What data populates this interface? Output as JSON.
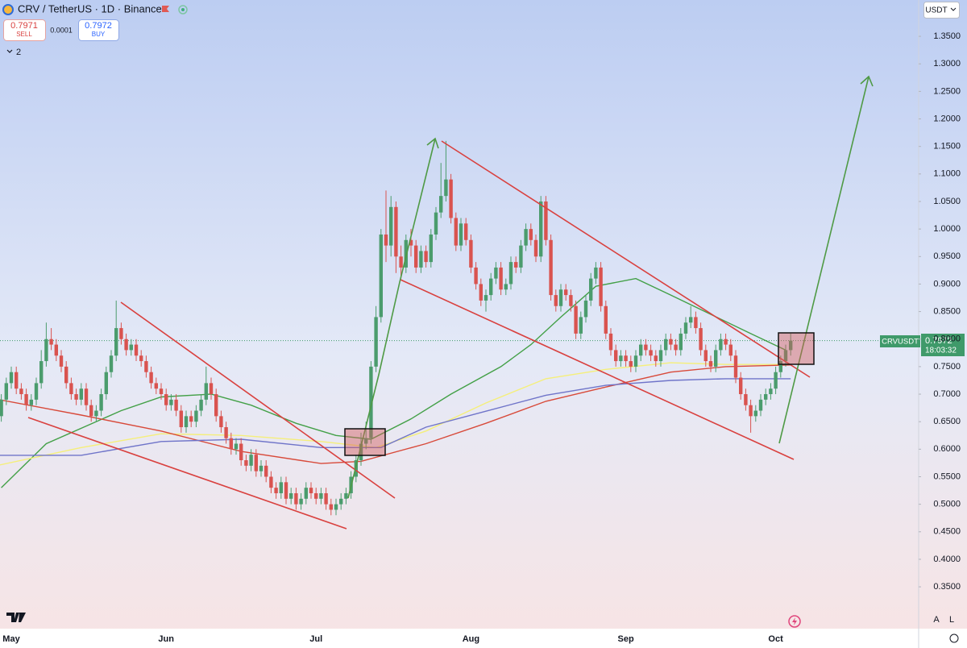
{
  "chart_data": {
    "type": "candlestick",
    "title": "CRV / TetherUS · 1D · Binance",
    "sell_price": 0.7971,
    "sell_label": "SELL",
    "spread": 0.0001,
    "buy_price": 0.7972,
    "buy_label": "BUY",
    "indicator_count": 2,
    "currency": "USDT",
    "symbol": "CRVUSDT",
    "last_price": 0.7972,
    "countdown": "18:03:32",
    "scale_buttons": [
      "A",
      "L"
    ],
    "up_color": "#4b9c6d",
    "down_color": "#d9534f",
    "grid": false,
    "ylim": [
      0.274,
      1.416
    ],
    "yticks": [
      {
        "value": 0.35,
        "label": "0.3500"
      },
      {
        "value": 0.4,
        "label": "0.4000"
      },
      {
        "value": 0.45,
        "label": "0.4500"
      },
      {
        "value": 0.5,
        "label": "0.5000"
      },
      {
        "value": 0.55,
        "label": "0.5500"
      },
      {
        "value": 0.6,
        "label": "0.6000"
      },
      {
        "value": 0.65,
        "label": "0.6500"
      },
      {
        "value": 0.7,
        "label": "0.7000"
      },
      {
        "value": 0.75,
        "label": "0.7500"
      },
      {
        "value": 0.8,
        "label": "0.8000"
      },
      {
        "value": 0.85,
        "label": "0.8500"
      },
      {
        "value": 0.9,
        "label": "0.9000"
      },
      {
        "value": 0.95,
        "label": "0.9500"
      },
      {
        "value": 1.0,
        "label": "1.0000"
      },
      {
        "value": 1.05,
        "label": "1.0500"
      },
      {
        "value": 1.1,
        "label": "1.1000"
      },
      {
        "value": 1.15,
        "label": "1.1500"
      },
      {
        "value": 1.2,
        "label": "1.2000"
      },
      {
        "value": 1.25,
        "label": "1.2500"
      },
      {
        "value": 1.3,
        "label": "1.3000"
      },
      {
        "value": 1.35,
        "label": "1.3500"
      }
    ],
    "categories": [
      null,
      null,
      null,
      "May",
      null,
      null,
      null,
      null,
      null,
      null,
      null,
      null,
      null,
      null,
      null,
      null,
      null,
      null,
      null,
      null,
      null,
      null,
      null,
      null,
      null,
      null,
      null,
      null,
      null,
      null,
      null,
      null,
      null,
      null,
      "Jun",
      null,
      null,
      null,
      null,
      null,
      null,
      null,
      null,
      null,
      null,
      null,
      null,
      null,
      null,
      null,
      null,
      null,
      null,
      null,
      null,
      null,
      null,
      null,
      null,
      null,
      null,
      null,
      null,
      null,
      "Jul",
      null,
      null,
      null,
      null,
      null,
      null,
      null,
      null,
      null,
      null,
      null,
      null,
      null,
      null,
      null,
      null,
      null,
      null,
      null,
      null,
      null,
      null,
      null,
      null,
      null,
      null,
      null,
      null,
      null,
      null,
      "Aug",
      null,
      null,
      null,
      null,
      null,
      null,
      null,
      null,
      null,
      null,
      null,
      null,
      null,
      null,
      null,
      null,
      null,
      null,
      null,
      null,
      null,
      null,
      null,
      null,
      null,
      null,
      null,
      null,
      null,
      null,
      "Sep",
      null,
      null,
      null,
      null,
      null,
      null,
      null,
      null,
      null,
      null,
      null,
      null,
      null,
      null,
      null,
      null,
      null,
      null,
      null,
      null,
      null,
      null,
      null,
      null,
      null,
      null,
      null,
      null,
      null,
      "Oct",
      null,
      null,
      null
    ],
    "open": [
      0.64,
      0.66,
      0.69,
      0.72,
      0.74,
      0.71,
      0.7,
      0.68,
      0.69,
      0.72,
      0.76,
      0.8,
      0.79,
      0.77,
      0.75,
      0.72,
      0.7,
      0.69,
      0.71,
      0.68,
      0.66,
      0.67,
      0.7,
      0.74,
      0.77,
      0.82,
      0.8,
      0.78,
      0.79,
      0.77,
      0.76,
      0.74,
      0.72,
      0.71,
      0.7,
      0.68,
      0.69,
      0.67,
      0.64,
      0.66,
      0.65,
      0.67,
      0.69,
      0.72,
      0.7,
      0.66,
      0.64,
      0.62,
      0.6,
      0.61,
      0.58,
      0.57,
      0.59,
      0.56,
      0.57,
      0.55,
      0.53,
      0.52,
      0.54,
      0.51,
      0.52,
      0.5,
      0.51,
      0.53,
      0.52,
      0.51,
      0.52,
      0.5,
      0.49,
      0.5,
      0.51,
      0.52,
      0.55,
      0.58,
      0.61,
      0.62,
      0.75,
      0.84,
      0.99,
      0.97,
      1.04,
      0.95,
      0.93,
      0.98,
      0.97,
      0.93,
      0.96,
      0.94,
      0.99,
      1.03,
      1.06,
      1.09,
      1.02,
      0.97,
      1.01,
      0.98,
      0.93,
      0.9,
      0.87,
      0.88,
      0.91,
      0.93,
      0.89,
      0.9,
      0.94,
      0.93,
      0.97,
      1.0,
      0.98,
      0.95,
      1.05,
      0.98,
      0.88,
      0.86,
      0.89,
      0.88,
      0.86,
      0.81,
      0.84,
      0.87,
      0.91,
      0.93,
      0.86,
      0.81,
      0.78,
      0.76,
      0.77,
      0.76,
      0.75,
      0.77,
      0.79,
      0.78,
      0.77,
      0.76,
      0.78,
      0.8,
      0.79,
      0.78,
      0.81,
      0.83,
      0.84,
      0.82,
      0.78,
      0.76,
      0.75,
      0.78,
      0.8,
      0.79,
      0.77,
      0.73,
      0.7,
      0.68,
      0.66,
      0.67,
      0.69,
      0.7,
      0.71,
      0.74,
      0.76,
      0.78
    ],
    "high": [
      0.67,
      0.7,
      0.73,
      0.75,
      0.75,
      0.72,
      0.71,
      0.7,
      0.73,
      0.78,
      0.83,
      0.82,
      0.8,
      0.78,
      0.76,
      0.73,
      0.71,
      0.72,
      0.72,
      0.69,
      0.68,
      0.71,
      0.75,
      0.78,
      0.87,
      0.83,
      0.81,
      0.8,
      0.8,
      0.78,
      0.77,
      0.75,
      0.73,
      0.72,
      0.71,
      0.7,
      0.7,
      0.68,
      0.67,
      0.67,
      0.68,
      0.7,
      0.75,
      0.73,
      0.71,
      0.67,
      0.65,
      0.63,
      0.62,
      0.62,
      0.59,
      0.6,
      0.6,
      0.58,
      0.58,
      0.56,
      0.54,
      0.55,
      0.55,
      0.53,
      0.53,
      0.52,
      0.54,
      0.54,
      0.53,
      0.53,
      0.53,
      0.51,
      0.51,
      0.52,
      0.53,
      0.56,
      0.59,
      0.63,
      0.65,
      0.76,
      0.86,
      1.0,
      1.07,
      1.06,
      1.05,
      0.97,
      0.99,
      1.0,
      0.98,
      0.97,
      0.97,
      1.0,
      1.04,
      1.12,
      1.16,
      1.1,
      1.03,
      1.02,
      1.02,
      0.99,
      0.94,
      0.91,
      0.89,
      0.92,
      0.94,
      0.94,
      0.91,
      0.95,
      0.95,
      0.98,
      1.01,
      1.01,
      0.99,
      1.06,
      1.06,
      0.99,
      0.89,
      0.9,
      0.9,
      0.89,
      0.87,
      0.85,
      0.88,
      0.92,
      0.94,
      0.94,
      0.87,
      0.82,
      0.79,
      0.78,
      0.78,
      0.77,
      0.78,
      0.8,
      0.8,
      0.79,
      0.78,
      0.79,
      0.81,
      0.81,
      0.8,
      0.82,
      0.84,
      0.86,
      0.85,
      0.83,
      0.79,
      0.77,
      0.79,
      0.81,
      0.81,
      0.8,
      0.78,
      0.74,
      0.71,
      0.69,
      0.68,
      0.7,
      0.71,
      0.72,
      0.75,
      0.77,
      0.79,
      0.81
    ],
    "low": [
      0.63,
      0.65,
      0.68,
      0.71,
      0.7,
      0.69,
      0.67,
      0.67,
      0.68,
      0.71,
      0.75,
      0.78,
      0.76,
      0.74,
      0.71,
      0.69,
      0.68,
      0.68,
      0.67,
      0.65,
      0.65,
      0.66,
      0.69,
      0.73,
      0.76,
      0.79,
      0.77,
      0.77,
      0.76,
      0.75,
      0.73,
      0.71,
      0.7,
      0.69,
      0.67,
      0.67,
      0.66,
      0.63,
      0.63,
      0.64,
      0.64,
      0.66,
      0.68,
      0.69,
      0.65,
      0.63,
      0.61,
      0.59,
      0.59,
      0.57,
      0.56,
      0.56,
      0.55,
      0.55,
      0.54,
      0.52,
      0.51,
      0.51,
      0.5,
      0.5,
      0.49,
      0.49,
      0.5,
      0.51,
      0.5,
      0.5,
      0.49,
      0.48,
      0.48,
      0.49,
      0.5,
      0.51,
      0.54,
      0.57,
      0.6,
      0.61,
      0.74,
      0.83,
      0.94,
      0.95,
      0.92,
      0.91,
      0.92,
      0.95,
      0.92,
      0.92,
      0.93,
      0.93,
      0.98,
      1.02,
      1.05,
      1.01,
      0.96,
      0.96,
      0.97,
      0.92,
      0.89,
      0.86,
      0.85,
      0.87,
      0.9,
      0.88,
      0.88,
      0.89,
      0.92,
      0.92,
      0.96,
      0.97,
      0.94,
      0.94,
      0.97,
      0.87,
      0.85,
      0.85,
      0.87,
      0.85,
      0.8,
      0.8,
      0.83,
      0.86,
      0.9,
      0.85,
      0.8,
      0.77,
      0.75,
      0.75,
      0.75,
      0.74,
      0.74,
      0.76,
      0.77,
      0.76,
      0.75,
      0.75,
      0.77,
      0.78,
      0.77,
      0.77,
      0.8,
      0.82,
      0.81,
      0.77,
      0.75,
      0.74,
      0.74,
      0.77,
      0.78,
      0.76,
      0.72,
      0.69,
      0.67,
      0.63,
      0.65,
      0.66,
      0.68,
      0.69,
      0.7,
      0.73,
      0.75,
      0.77
    ],
    "close": [
      0.66,
      0.69,
      0.72,
      0.74,
      0.71,
      0.7,
      0.68,
      0.69,
      0.72,
      0.76,
      0.8,
      0.79,
      0.77,
      0.75,
      0.72,
      0.7,
      0.69,
      0.71,
      0.68,
      0.66,
      0.67,
      0.7,
      0.74,
      0.77,
      0.82,
      0.8,
      0.78,
      0.79,
      0.77,
      0.76,
      0.74,
      0.72,
      0.71,
      0.7,
      0.68,
      0.69,
      0.67,
      0.64,
      0.66,
      0.65,
      0.67,
      0.69,
      0.72,
      0.7,
      0.66,
      0.64,
      0.62,
      0.6,
      0.61,
      0.58,
      0.57,
      0.59,
      0.56,
      0.57,
      0.55,
      0.53,
      0.52,
      0.54,
      0.51,
      0.52,
      0.5,
      0.51,
      0.53,
      0.52,
      0.51,
      0.52,
      0.5,
      0.49,
      0.5,
      0.51,
      0.52,
      0.55,
      0.58,
      0.61,
      0.62,
      0.75,
      0.84,
      0.99,
      0.97,
      1.04,
      0.95,
      0.93,
      0.98,
      0.97,
      0.93,
      0.96,
      0.94,
      0.99,
      1.03,
      1.06,
      1.09,
      1.02,
      0.97,
      1.01,
      0.98,
      0.93,
      0.9,
      0.87,
      0.88,
      0.91,
      0.93,
      0.89,
      0.9,
      0.94,
      0.93,
      0.97,
      1.0,
      0.98,
      0.95,
      1.05,
      0.98,
      0.88,
      0.86,
      0.89,
      0.88,
      0.86,
      0.81,
      0.84,
      0.87,
      0.91,
      0.93,
      0.86,
      0.81,
      0.78,
      0.76,
      0.77,
      0.76,
      0.75,
      0.77,
      0.79,
      0.78,
      0.77,
      0.76,
      0.78,
      0.8,
      0.79,
      0.78,
      0.81,
      0.83,
      0.84,
      0.82,
      0.78,
      0.76,
      0.75,
      0.78,
      0.8,
      0.79,
      0.77,
      0.73,
      0.7,
      0.68,
      0.66,
      0.67,
      0.69,
      0.7,
      0.71,
      0.74,
      0.76,
      0.78,
      0.7972
    ],
    "overlays": [
      {
        "color": "#43a047",
        "x": [
          1,
          10,
          25,
          33,
          43,
          51,
          60,
          68,
          75,
          83,
          91,
          101,
          107,
          113,
          120,
          128,
          135,
          143,
          151,
          158
        ],
        "values": [
          0.53,
          0.61,
          0.67,
          0.695,
          0.7,
          0.68,
          0.647,
          0.625,
          0.618,
          0.655,
          0.7,
          0.75,
          0.79,
          0.84,
          0.896,
          0.91,
          0.88,
          0.845,
          0.81,
          0.78
        ]
      },
      {
        "color": "#f5ef7a",
        "x": [
          0,
          17,
          33,
          49,
          65,
          76,
          86,
          98,
          110,
          122,
          135,
          146,
          159
        ],
        "values": [
          0.57,
          0.603,
          0.628,
          0.625,
          0.614,
          0.603,
          0.633,
          0.684,
          0.728,
          0.745,
          0.757,
          0.754,
          0.754
        ]
      },
      {
        "color": "#d84a3a",
        "x": [
          0,
          17,
          33,
          49,
          65,
          73,
          86,
          98,
          110,
          122,
          135,
          146,
          159
        ],
        "values": [
          0.691,
          0.662,
          0.633,
          0.596,
          0.574,
          0.578,
          0.61,
          0.647,
          0.687,
          0.713,
          0.74,
          0.75,
          0.753
        ]
      },
      {
        "color": "#6f74c9",
        "x": [
          0,
          17,
          33,
          49,
          65,
          77,
          86,
          98,
          110,
          122,
          135,
          146,
          159
        ],
        "values": [
          0.589,
          0.589,
          0.614,
          0.618,
          0.603,
          0.603,
          0.64,
          0.669,
          0.698,
          0.716,
          0.725,
          0.728,
          0.728
        ]
      }
    ]
  }
}
